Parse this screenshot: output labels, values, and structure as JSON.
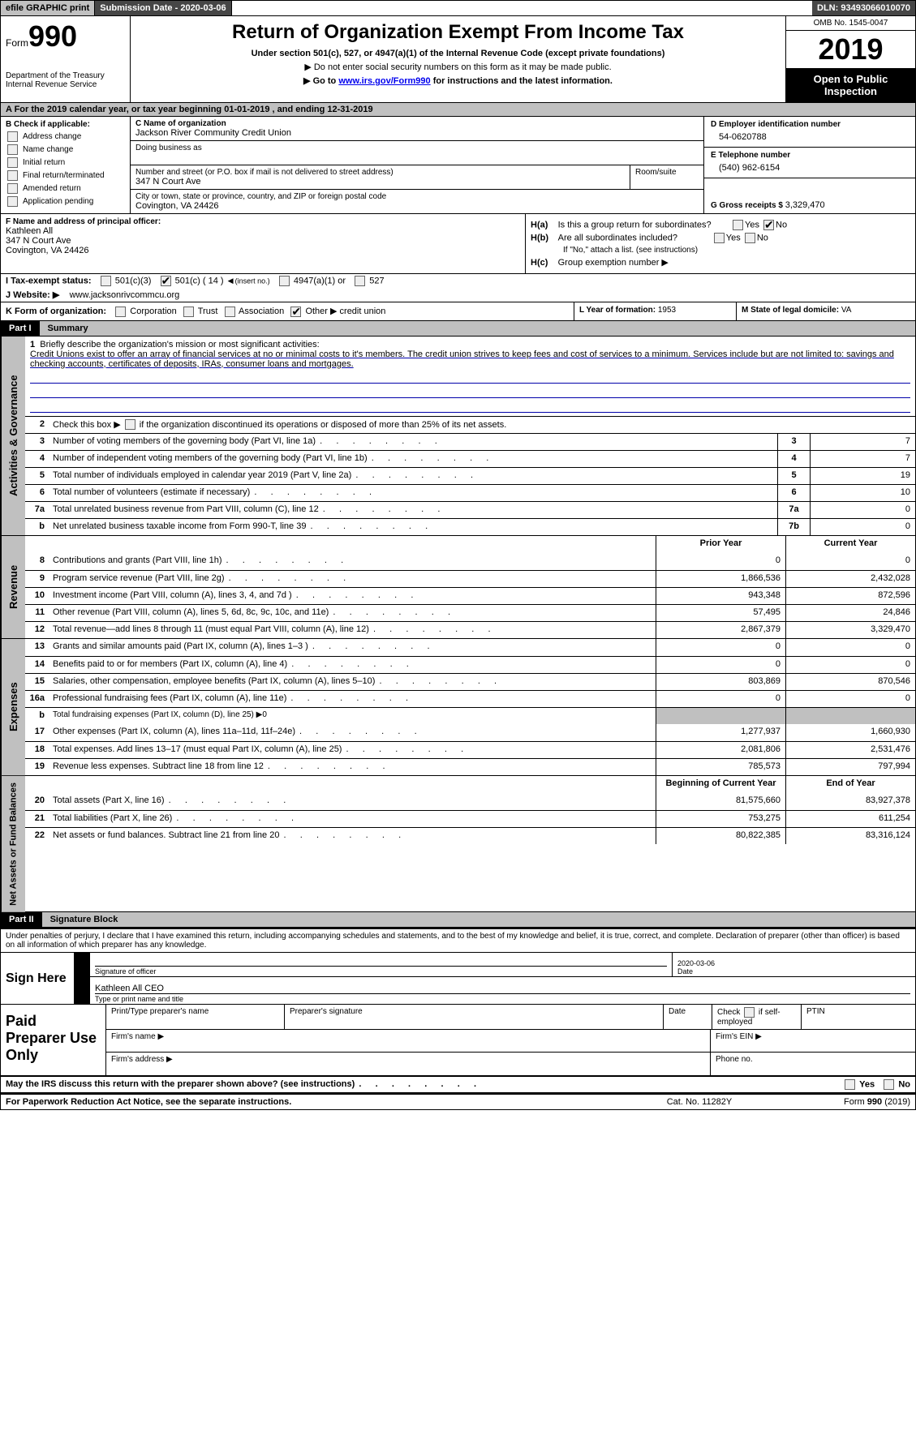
{
  "topbar": {
    "efile": "efile GRAPHIC print",
    "submission_label": "Submission Date - ",
    "submission_date": "2020-03-06",
    "dln_label": "DLN: ",
    "dln": "93493066010070"
  },
  "header": {
    "form_prefix": "Form",
    "form_no": "990",
    "dept": "Department of the Treasury",
    "irs": "Internal Revenue Service",
    "title": "Return of Organization Exempt From Income Tax",
    "sub1": "Under section 501(c), 527, or 4947(a)(1) of the Internal Revenue Code (except private foundations)",
    "sub2_pre": "▶ Do not enter social security numbers on this form as it may be made public.",
    "sub3_pre": "▶ Go to ",
    "sub3_link": "www.irs.gov/Form990",
    "sub3_post": " for instructions and the latest information.",
    "omb": "OMB No. 1545-0047",
    "year": "2019",
    "open": "Open to Public Inspection"
  },
  "row_a": {
    "pre": "A   For the 2019 calendar year, or tax year beginning ",
    "begin": "01-01-2019",
    "mid": "   , and ending ",
    "end": "12-31-2019"
  },
  "col_b": {
    "label": "B Check if applicable:",
    "items": [
      "Address change",
      "Name change",
      "Initial return",
      "Final return/terminated",
      "Amended return",
      "Application pending"
    ]
  },
  "col_c": {
    "c_label": "C Name of organization",
    "org_name": "Jackson River Community Credit Union",
    "dba_label": "Doing business as",
    "addr_label": "Number and street (or P.O. box if mail is not delivered to street address)",
    "room_label": "Room/suite",
    "street": "347 N Court Ave",
    "city_label": "City or town, state or province, country, and ZIP or foreign postal code",
    "city": "Covington, VA  24426"
  },
  "col_de": {
    "d_label": "D Employer identification number",
    "d_val": "54-0620788",
    "e_label": "E Telephone number",
    "e_val": "(540) 962-6154",
    "g_label": "G Gross receipts $ ",
    "g_val": "3,329,470"
  },
  "row_f": {
    "f_label": "F  Name and address of principal officer:",
    "f_name": "Kathleen All",
    "f_street": "347 N Court Ave",
    "f_city": "Covington, VA  24426",
    "ha_label": "H(a)",
    "ha_text": "Is this a group return for subordinates?",
    "hb_label": "H(b)",
    "hb_text": "Are all subordinates included?",
    "hb_note": "If \"No,\" attach a list. (see instructions)",
    "hc_label": "H(c)",
    "hc_text": "Group exemption number ▶",
    "yes": "Yes",
    "no": "No"
  },
  "row_i": {
    "label": "I   Tax-exempt status:",
    "o1": "501(c)(3)",
    "o2": "501(c) ( ",
    "o2_num": "14",
    "o2_post": " )",
    "o2_insert": "(insert no.)",
    "o3": "4947(a)(1) or",
    "o4": "527"
  },
  "row_j": {
    "label": "J   Website: ▶",
    "url": "www.jacksonrivcommcu.org"
  },
  "row_k": {
    "label": "K Form of organization:",
    "o1": "Corporation",
    "o2": "Trust",
    "o3": "Association",
    "o4": "Other ▶",
    "o4_val": "credit union",
    "l_label": "L Year of formation: ",
    "l_val": "1953",
    "m_label": "M State of legal domicile: ",
    "m_val": "VA"
  },
  "part1": {
    "part": "Part I",
    "title": "Summary"
  },
  "activities": {
    "vlabel": "Activities & Governance",
    "l1_n": "1",
    "l1": "Briefly describe the organization's mission or most significant activities:",
    "l1_text": "Credit Unions exist to offer an array of financial services at no or minimal costs to it's members. The credit union strives to keep fees and cost of services to a minimum. Services include but are not limited to: savings and checking accounts, certificates of deposits, IRAs, consumer loans and mortgages.",
    "l2_n": "2",
    "l2": "Check this box ▶       if the organization discontinued its operations or disposed of more than 25% of its net assets.",
    "l3_n": "3",
    "l3": "Number of voting members of the governing body (Part VI, line 1a)",
    "l3_box": "3",
    "l3_val": "7",
    "l4_n": "4",
    "l4": "Number of independent voting members of the governing body (Part VI, line 1b)",
    "l4_box": "4",
    "l4_val": "7",
    "l5_n": "5",
    "l5": "Total number of individuals employed in calendar year 2019 (Part V, line 2a)",
    "l5_box": "5",
    "l5_val": "19",
    "l6_n": "6",
    "l6": "Total number of volunteers (estimate if necessary)",
    "l6_box": "6",
    "l6_val": "10",
    "l7a_n": "7a",
    "l7a": "Total unrelated business revenue from Part VIII, column (C), line 12",
    "l7a_box": "7a",
    "l7a_val": "0",
    "l7b_n": "b",
    "l7b": "Net unrelated business taxable income from Form 990-T, line 39",
    "l7b_box": "7b",
    "l7b_val": "0"
  },
  "revenue": {
    "vlabel": "Revenue",
    "prior_hdr": "Prior Year",
    "curr_hdr": "Current Year",
    "rows": [
      {
        "n": "8",
        "d": "Contributions and grants (Part VIII, line 1h)",
        "p": "0",
        "c": "0"
      },
      {
        "n": "9",
        "d": "Program service revenue (Part VIII, line 2g)",
        "p": "1,866,536",
        "c": "2,432,028"
      },
      {
        "n": "10",
        "d": "Investment income (Part VIII, column (A), lines 3, 4, and 7d )",
        "p": "943,348",
        "c": "872,596"
      },
      {
        "n": "11",
        "d": "Other revenue (Part VIII, column (A), lines 5, 6d, 8c, 9c, 10c, and 11e)",
        "p": "57,495",
        "c": "24,846"
      },
      {
        "n": "12",
        "d": "Total revenue—add lines 8 through 11 (must equal Part VIII, column (A), line 12)",
        "p": "2,867,379",
        "c": "3,329,470"
      }
    ]
  },
  "expenses": {
    "vlabel": "Expenses",
    "rows": [
      {
        "n": "13",
        "d": "Grants and similar amounts paid (Part IX, column (A), lines 1–3 )",
        "p": "0",
        "c": "0"
      },
      {
        "n": "14",
        "d": "Benefits paid to or for members (Part IX, column (A), line 4)",
        "p": "0",
        "c": "0"
      },
      {
        "n": "15",
        "d": "Salaries, other compensation, employee benefits (Part IX, column (A), lines 5–10)",
        "p": "803,869",
        "c": "870,546"
      },
      {
        "n": "16a",
        "d": "Professional fundraising fees (Part IX, column (A), line 11e)",
        "p": "0",
        "c": "0"
      }
    ],
    "l16b_n": "b",
    "l16b": "Total fundraising expenses (Part IX, column (D), line 25) ▶",
    "l16b_val": "0",
    "rows2": [
      {
        "n": "17",
        "d": "Other expenses (Part IX, column (A), lines 11a–11d, 11f–24e)",
        "p": "1,277,937",
        "c": "1,660,930"
      },
      {
        "n": "18",
        "d": "Total expenses. Add lines 13–17 (must equal Part IX, column (A), line 25)",
        "p": "2,081,806",
        "c": "2,531,476"
      },
      {
        "n": "19",
        "d": "Revenue less expenses. Subtract line 18 from line 12",
        "p": "785,573",
        "c": "797,994"
      }
    ]
  },
  "netassets": {
    "vlabel": "Net Assets or Fund Balances",
    "begin_hdr": "Beginning of Current Year",
    "end_hdr": "End of Year",
    "rows": [
      {
        "n": "20",
        "d": "Total assets (Part X, line 16)",
        "p": "81,575,660",
        "c": "83,927,378"
      },
      {
        "n": "21",
        "d": "Total liabilities (Part X, line 26)",
        "p": "753,275",
        "c": "611,254"
      },
      {
        "n": "22",
        "d": "Net assets or fund balances. Subtract line 21 from line 20",
        "p": "80,822,385",
        "c": "83,316,124"
      }
    ]
  },
  "part2": {
    "part": "Part II",
    "title": "Signature Block"
  },
  "sig": {
    "penalty": "Under penalties of perjury, I declare that I have examined this return, including accompanying schedules and statements, and to the best of my knowledge and belief, it is true, correct, and complete. Declaration of preparer (other than officer) is based on all information of which preparer has any knowledge.",
    "sign_here": "Sign Here",
    "sig_officer": "Signature of officer",
    "date_label": "Date",
    "date": "2020-03-06",
    "name_title": "Kathleen All  CEO",
    "name_label": "Type or print name and title"
  },
  "prep": {
    "label": "Paid Preparer Use Only",
    "c1": "Print/Type preparer's name",
    "c2": "Preparer's signature",
    "c3": "Date",
    "c4_pre": "Check",
    "c4_post": "if self-employed",
    "c5": "PTIN",
    "firm_name": "Firm's name    ▶",
    "firm_ein": "Firm's EIN ▶",
    "firm_addr": "Firm's address ▶",
    "phone": "Phone no."
  },
  "footer": {
    "discuss": "May the IRS discuss this return with the preparer shown above? (see instructions)",
    "yes": "Yes",
    "no": "No",
    "paperwork": "For Paperwork Reduction Act Notice, see the separate instructions.",
    "cat": "Cat. No. 11282Y",
    "form": "Form 990 (2019)"
  }
}
